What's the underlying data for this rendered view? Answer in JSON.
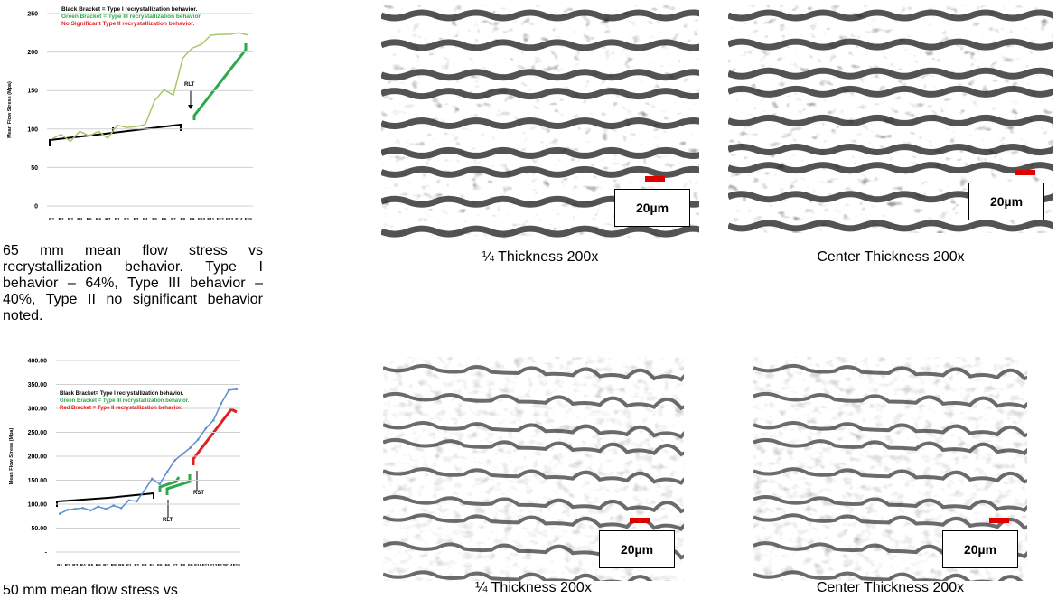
{
  "chart_data": [
    {
      "type": "line",
      "y_label": "Mean Flow Stress (Mpa)",
      "notes": [
        {
          "text": "Black Bracket = Type I recrystallization behavior.",
          "color": "#000000"
        },
        {
          "text": "Green Bracket = Type III recrystallization behavior.",
          "color": "#2ea84a"
        },
        {
          "text": "No Significant Type II recrystallization behavior.",
          "color": "#e02020"
        }
      ],
      "annotations": [
        "RLT"
      ],
      "categories": [
        "R1",
        "R2",
        "R3",
        "R4",
        "R5",
        "R6",
        "R7",
        "F1",
        "F2",
        "F3",
        "F4",
        "F5",
        "F6",
        "F7",
        "F8",
        "F9",
        "F10",
        "F11",
        "F12",
        "F13",
        "F14",
        "F15"
      ],
      "series": [
        {
          "color": "#a8c86a",
          "values": [
            87,
            93,
            84,
            97,
            91,
            97,
            88,
            105,
            102,
            103,
            106,
            137,
            151,
            144,
            192,
            205,
            210,
            222,
            223,
            223,
            225,
            222
          ]
        }
      ],
      "ylim": [
        0,
        250
      ],
      "yticks": [
        0,
        50,
        100,
        150,
        200,
        250
      ],
      "grid": true,
      "markers": false
    },
    {
      "type": "line",
      "y_label": "Mean Flow Stress (Mpa)",
      "notes": [
        {
          "text": "Black Bracket= Type I recrystallization behavior.",
          "color": "#000000"
        },
        {
          "text": "Green Bracket = Type III recrystallization behavior.",
          "color": "#2ea84a"
        },
        {
          "text": "Red Bracket = Type II recrystallization behavior.",
          "color": "#e02020"
        }
      ],
      "annotations": [
        "RLT",
        "RST"
      ],
      "categories": [
        "R1",
        "R2",
        "R3",
        "R4",
        "R5",
        "R6",
        "R7",
        "R8",
        "R9",
        "F1",
        "F2",
        "F3",
        "F4",
        "F5",
        "F6",
        "F7",
        "F8",
        "F9",
        "F10",
        "F11",
        "F12",
        "F13",
        "F14",
        "F15"
      ],
      "series": [
        {
          "color": "#5b8fd0",
          "values": [
            80,
            88,
            90,
            92,
            87,
            95,
            90,
            97,
            92,
            108,
            106,
            128,
            153,
            142,
            168,
            192,
            205,
            218,
            235,
            258,
            275,
            310,
            338,
            340
          ]
        }
      ],
      "ylim": [
        0,
        400
      ],
      "yticks": [
        {
          "value": 0,
          "label": "-"
        },
        {
          "value": 50,
          "label": "50.00"
        },
        {
          "value": 100,
          "label": "100.00"
        },
        {
          "value": 150,
          "label": "150.00"
        },
        {
          "value": 200,
          "label": "200.00"
        },
        {
          "value": 250,
          "label": "250.00"
        },
        {
          "value": 300,
          "label": "300.00"
        },
        {
          "value": 350,
          "label": "350.00"
        },
        {
          "value": 400,
          "label": "400.00"
        }
      ],
      "grid": true,
      "markers": true
    }
  ],
  "captions": [
    "65 mm mean flow stress vs recrystallization behavior. Type I behavior – 64%, Type III behavior – 40%, Type II no significant behavior noted.",
    "50 mm mean flow stress vs"
  ],
  "micrographs": [
    {
      "caption": "¼ Thickness 200x",
      "scale": "20µm"
    },
    {
      "caption": "Center Thickness 200x",
      "scale": "20µm"
    },
    {
      "caption": "¼ Thickness 200x",
      "scale": "20µm"
    },
    {
      "caption": "Center Thickness 200x",
      "scale": "20µm"
    }
  ]
}
